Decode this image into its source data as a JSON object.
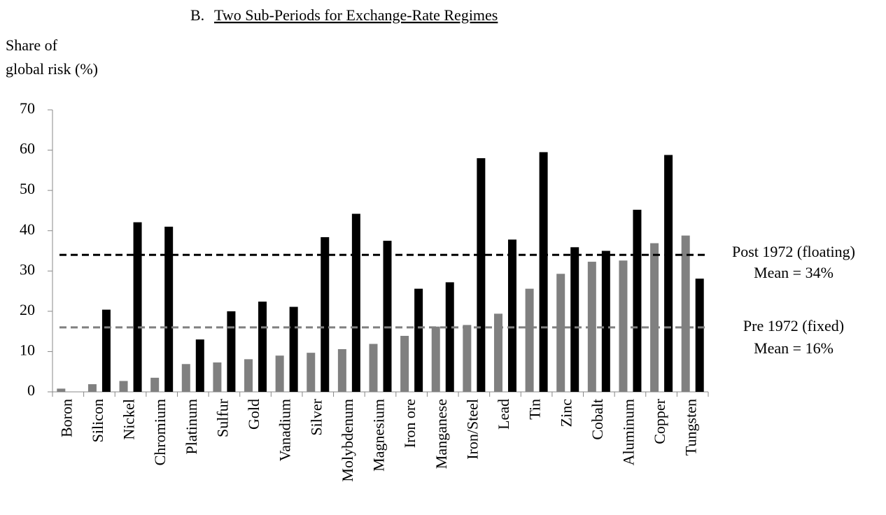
{
  "chart_data": {
    "type": "bar",
    "panel": "B.",
    "title": "Two Sub-Periods for Exchange-Rate Regimes",
    "ylabel": [
      "Share of",
      "global risk (%)"
    ],
    "categories": [
      "Boron",
      "Silicon",
      "Nickel",
      "Chromium",
      "Platinum",
      "Sulfur",
      "Gold",
      "Vanadium",
      "Silver",
      "Molybdenum",
      "Magnesium",
      "Iron ore",
      "Manganese",
      "Iron/Steel",
      "Lead",
      "Tin",
      "Zinc",
      "Cobalt",
      "Aluminum",
      "Copper",
      "Tungsten"
    ],
    "series": [
      {
        "name": "Pre 1972 (fixed)",
        "color": "#808080",
        "mean": 16,
        "mean_label": "Mean = 16%",
        "values": [
          0.8,
          1.9,
          2.7,
          3.5,
          6.9,
          7.3,
          8.1,
          9.0,
          9.7,
          10.6,
          11.9,
          13.9,
          16.2,
          16.6,
          19.4,
          25.6,
          29.3,
          32.3,
          32.6,
          36.9,
          38.8
        ]
      },
      {
        "name": "Post 1972 (floating)",
        "color": "#000000",
        "mean": 34,
        "mean_label": "Mean = 34%",
        "values": [
          0,
          20.4,
          42.1,
          41.0,
          13.0,
          20.0,
          22.4,
          21.1,
          38.4,
          44.2,
          37.5,
          25.6,
          27.2,
          58.0,
          37.8,
          59.5,
          35.9,
          35.0,
          45.2,
          58.8,
          28.1
        ]
      }
    ],
    "ylim": [
      0,
      70
    ],
    "yticks": [
      0,
      10,
      20,
      30,
      40,
      50,
      60,
      70
    ],
    "grid": false
  }
}
